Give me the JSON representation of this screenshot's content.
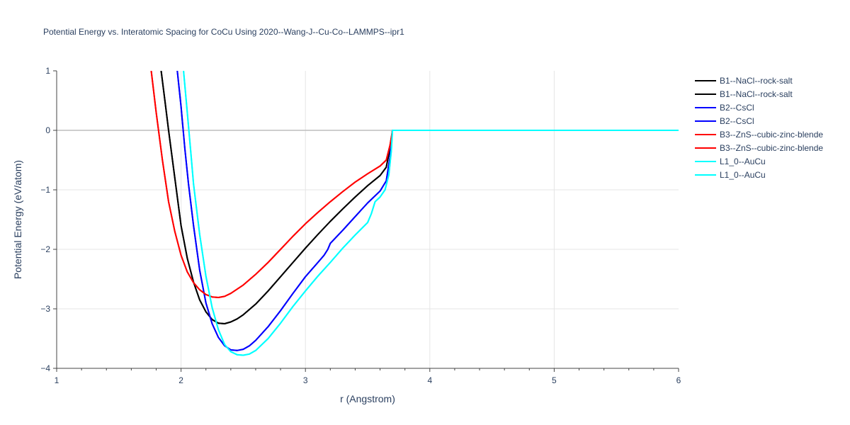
{
  "chart_data": {
    "type": "line",
    "title": "Potential Energy vs. Interatomic Spacing for CoCu Using 2020--Wang-J--Cu-Co--LAMMPS--ipr1",
    "xlabel": "r (Angstrom)",
    "ylabel": "Potential Energy (eV/atom)",
    "xlim": [
      1,
      6
    ],
    "ylim": [
      -4,
      1
    ],
    "xticks": [
      "1",
      "2",
      "3",
      "4",
      "5",
      "6"
    ],
    "yticks": [
      "1",
      "0",
      "−1",
      "−2",
      "−3",
      "−4"
    ],
    "grid": true,
    "legend_position": "right",
    "series": [
      {
        "name": "B1--NaCl--rock-salt",
        "color": "#000000",
        "x": [
          1.84,
          1.87,
          1.9,
          1.95,
          2.0,
          2.05,
          2.1,
          2.15,
          2.2,
          2.25,
          2.3,
          2.35,
          2.4,
          2.45,
          2.5,
          2.6,
          2.7,
          2.8,
          2.9,
          3.0,
          3.1,
          3.2,
          3.3,
          3.4,
          3.5,
          3.6,
          3.65,
          3.68,
          3.7,
          3.75,
          4.0,
          5.0,
          6.0
        ],
        "y": [
          1.0,
          0.5,
          0.0,
          -0.8,
          -1.6,
          -2.15,
          -2.55,
          -2.85,
          -3.05,
          -3.18,
          -3.24,
          -3.25,
          -3.22,
          -3.17,
          -3.1,
          -2.92,
          -2.7,
          -2.46,
          -2.22,
          -1.98,
          -1.75,
          -1.53,
          -1.32,
          -1.12,
          -0.93,
          -0.76,
          -0.62,
          -0.3,
          0.0,
          0.0,
          0.0,
          0.0,
          0.0
        ]
      },
      {
        "name": "B1--NaCl--rock-salt",
        "color": "#000000",
        "x": [
          1.84,
          1.87,
          1.9,
          1.95,
          2.0,
          2.05,
          2.1,
          2.15,
          2.2,
          2.25,
          2.3,
          2.35,
          2.4,
          2.45,
          2.5,
          2.6,
          2.7,
          2.8,
          2.9,
          3.0,
          3.1,
          3.2,
          3.3,
          3.4,
          3.5,
          3.6,
          3.65,
          3.68,
          3.7,
          3.75,
          4.0,
          5.0,
          6.0
        ],
        "y": [
          1.0,
          0.5,
          0.0,
          -0.8,
          -1.6,
          -2.15,
          -2.55,
          -2.85,
          -3.05,
          -3.18,
          -3.24,
          -3.25,
          -3.22,
          -3.17,
          -3.1,
          -2.92,
          -2.7,
          -2.46,
          -2.22,
          -1.98,
          -1.75,
          -1.53,
          -1.32,
          -1.12,
          -0.93,
          -0.76,
          -0.62,
          -0.3,
          0.0,
          0.0,
          0.0,
          0.0,
          0.0
        ]
      },
      {
        "name": "B2--CsCl",
        "color": "#0000ff",
        "x": [
          1.97,
          2.0,
          2.03,
          2.06,
          2.1,
          2.15,
          2.2,
          2.25,
          2.3,
          2.35,
          2.4,
          2.45,
          2.5,
          2.55,
          2.6,
          2.7,
          2.8,
          2.9,
          3.0,
          3.1,
          3.15,
          3.18,
          3.2,
          3.3,
          3.4,
          3.5,
          3.6,
          3.65,
          3.68,
          3.7,
          3.75,
          4.0,
          5.0,
          6.0
        ],
        "y": [
          1.0,
          0.4,
          -0.3,
          -0.9,
          -1.6,
          -2.35,
          -2.9,
          -3.25,
          -3.48,
          -3.62,
          -3.69,
          -3.7,
          -3.68,
          -3.62,
          -3.53,
          -3.3,
          -3.03,
          -2.74,
          -2.46,
          -2.22,
          -2.1,
          -2.0,
          -1.9,
          -1.68,
          -1.45,
          -1.22,
          -1.02,
          -0.85,
          -0.45,
          0.0,
          0.0,
          0.0,
          0.0,
          0.0
        ]
      },
      {
        "name": "B2--CsCl",
        "color": "#0000ff",
        "x": [
          1.97,
          2.0,
          2.03,
          2.06,
          2.1,
          2.15,
          2.2,
          2.25,
          2.3,
          2.35,
          2.4,
          2.45,
          2.5,
          2.55,
          2.6,
          2.7,
          2.8,
          2.9,
          3.0,
          3.1,
          3.15,
          3.18,
          3.2,
          3.3,
          3.4,
          3.5,
          3.6,
          3.65,
          3.68,
          3.7,
          3.75,
          4.0,
          5.0,
          6.0
        ],
        "y": [
          1.0,
          0.4,
          -0.3,
          -0.9,
          -1.6,
          -2.35,
          -2.9,
          -3.25,
          -3.48,
          -3.62,
          -3.69,
          -3.7,
          -3.68,
          -3.62,
          -3.53,
          -3.3,
          -3.03,
          -2.74,
          -2.46,
          -2.22,
          -2.1,
          -2.0,
          -1.9,
          -1.68,
          -1.45,
          -1.22,
          -1.02,
          -0.85,
          -0.45,
          0.0,
          0.0,
          0.0,
          0.0,
          0.0
        ]
      },
      {
        "name": "B3--ZnS--cubic-zinc-blende",
        "color": "#ff0000",
        "x": [
          1.76,
          1.8,
          1.85,
          1.9,
          1.95,
          2.0,
          2.05,
          2.1,
          2.15,
          2.2,
          2.25,
          2.3,
          2.35,
          2.4,
          2.5,
          2.6,
          2.7,
          2.8,
          2.9,
          3.0,
          3.1,
          3.2,
          3.3,
          3.4,
          3.5,
          3.6,
          3.65,
          3.68,
          3.7,
          3.75,
          4.0,
          5.0,
          6.0
        ],
        "y": [
          1.0,
          0.3,
          -0.5,
          -1.2,
          -1.7,
          -2.1,
          -2.38,
          -2.56,
          -2.68,
          -2.76,
          -2.8,
          -2.81,
          -2.79,
          -2.74,
          -2.6,
          -2.42,
          -2.22,
          -2.0,
          -1.78,
          -1.57,
          -1.38,
          -1.2,
          -1.03,
          -0.87,
          -0.73,
          -0.6,
          -0.5,
          -0.25,
          0.0,
          0.0,
          0.0,
          0.0,
          0.0
        ]
      },
      {
        "name": "B3--ZnS--cubic-zinc-blende",
        "color": "#ff0000",
        "x": [
          1.76,
          1.8,
          1.85,
          1.9,
          1.95,
          2.0,
          2.05,
          2.1,
          2.15,
          2.2,
          2.25,
          2.3,
          2.35,
          2.4,
          2.5,
          2.6,
          2.7,
          2.8,
          2.9,
          3.0,
          3.1,
          3.2,
          3.3,
          3.4,
          3.5,
          3.6,
          3.65,
          3.68,
          3.7,
          3.75,
          4.0,
          5.0,
          6.0
        ],
        "y": [
          1.0,
          0.3,
          -0.5,
          -1.2,
          -1.7,
          -2.1,
          -2.38,
          -2.56,
          -2.68,
          -2.76,
          -2.8,
          -2.81,
          -2.79,
          -2.74,
          -2.6,
          -2.42,
          -2.22,
          -2.0,
          -1.78,
          -1.57,
          -1.38,
          -1.2,
          -1.03,
          -0.87,
          -0.73,
          -0.6,
          -0.5,
          -0.25,
          0.0,
          0.0,
          0.0,
          0.0,
          0.0
        ]
      },
      {
        "name": "L1_0--AuCu",
        "color": "#00ffff",
        "x": [
          2.02,
          2.05,
          2.08,
          2.1,
          2.15,
          2.2,
          2.25,
          2.3,
          2.35,
          2.4,
          2.45,
          2.5,
          2.55,
          2.6,
          2.7,
          2.8,
          2.9,
          3.0,
          3.1,
          3.2,
          3.3,
          3.4,
          3.5,
          3.53,
          3.56,
          3.6,
          3.64,
          3.67,
          3.69,
          3.7,
          3.75,
          4.0,
          5.0,
          6.0
        ],
        "y": [
          1.0,
          0.3,
          -0.4,
          -0.9,
          -1.75,
          -2.45,
          -2.98,
          -3.35,
          -3.6,
          -3.72,
          -3.77,
          -3.78,
          -3.76,
          -3.7,
          -3.5,
          -3.24,
          -2.96,
          -2.7,
          -2.45,
          -2.22,
          -1.98,
          -1.76,
          -1.55,
          -1.4,
          -1.2,
          -1.12,
          -1.0,
          -0.75,
          -0.35,
          0.0,
          0.0,
          0.0,
          0.0,
          0.0
        ]
      },
      {
        "name": "L1_0--AuCu",
        "color": "#00ffff",
        "x": [
          2.02,
          2.05,
          2.08,
          2.1,
          2.15,
          2.2,
          2.25,
          2.3,
          2.35,
          2.4,
          2.45,
          2.5,
          2.55,
          2.6,
          2.7,
          2.8,
          2.9,
          3.0,
          3.1,
          3.2,
          3.3,
          3.4,
          3.5,
          3.53,
          3.56,
          3.6,
          3.64,
          3.67,
          3.69,
          3.7,
          3.75,
          4.0,
          5.0,
          6.0
        ],
        "y": [
          1.0,
          0.3,
          -0.4,
          -0.9,
          -1.75,
          -2.45,
          -2.98,
          -3.35,
          -3.6,
          -3.72,
          -3.77,
          -3.78,
          -3.76,
          -3.7,
          -3.5,
          -3.24,
          -2.96,
          -2.7,
          -2.45,
          -2.22,
          -1.98,
          -1.76,
          -1.55,
          -1.4,
          -1.2,
          -1.12,
          -1.0,
          -0.75,
          -0.35,
          0.0,
          0.0,
          0.0,
          0.0,
          0.0
        ]
      }
    ]
  }
}
